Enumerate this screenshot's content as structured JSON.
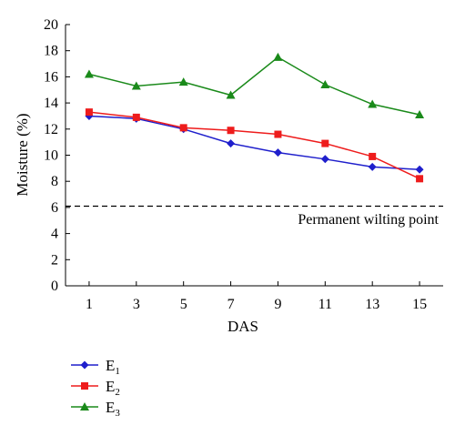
{
  "chart_data": {
    "type": "line",
    "title": "",
    "xlabel": "DAS",
    "ylabel": "Moisture (%)",
    "x": [
      1,
      3,
      5,
      7,
      9,
      11,
      13,
      15
    ],
    "xticks": [
      "1",
      "3",
      "5",
      "7",
      "9",
      "11",
      "13",
      "15"
    ],
    "xlim": [
      0,
      16
    ],
    "ylim": [
      0,
      20
    ],
    "yticks": [
      "0",
      "2",
      "4",
      "6",
      "8",
      "10",
      "12",
      "14",
      "16",
      "18",
      "20"
    ],
    "grid": false,
    "legend_position": "bottom-left",
    "series": [
      {
        "name": "E",
        "sub": "1",
        "color": "#1f1fcc",
        "marker": "diamond",
        "values": [
          13.0,
          12.8,
          12.0,
          10.9,
          10.2,
          9.7,
          9.1,
          8.9
        ]
      },
      {
        "name": "E",
        "sub": "2",
        "color": "#ee1c1c",
        "marker": "square",
        "values": [
          13.3,
          12.9,
          12.1,
          11.9,
          11.6,
          10.9,
          9.9,
          8.2
        ]
      },
      {
        "name": "E",
        "sub": "3",
        "color": "#1a8a1a",
        "marker": "triangle",
        "values": [
          16.2,
          15.3,
          15.6,
          14.6,
          17.5,
          15.4,
          13.9,
          13.1
        ]
      }
    ],
    "reference_line": {
      "y": 6.1,
      "label": "Permanent wilting point",
      "style": "dashed"
    }
  }
}
